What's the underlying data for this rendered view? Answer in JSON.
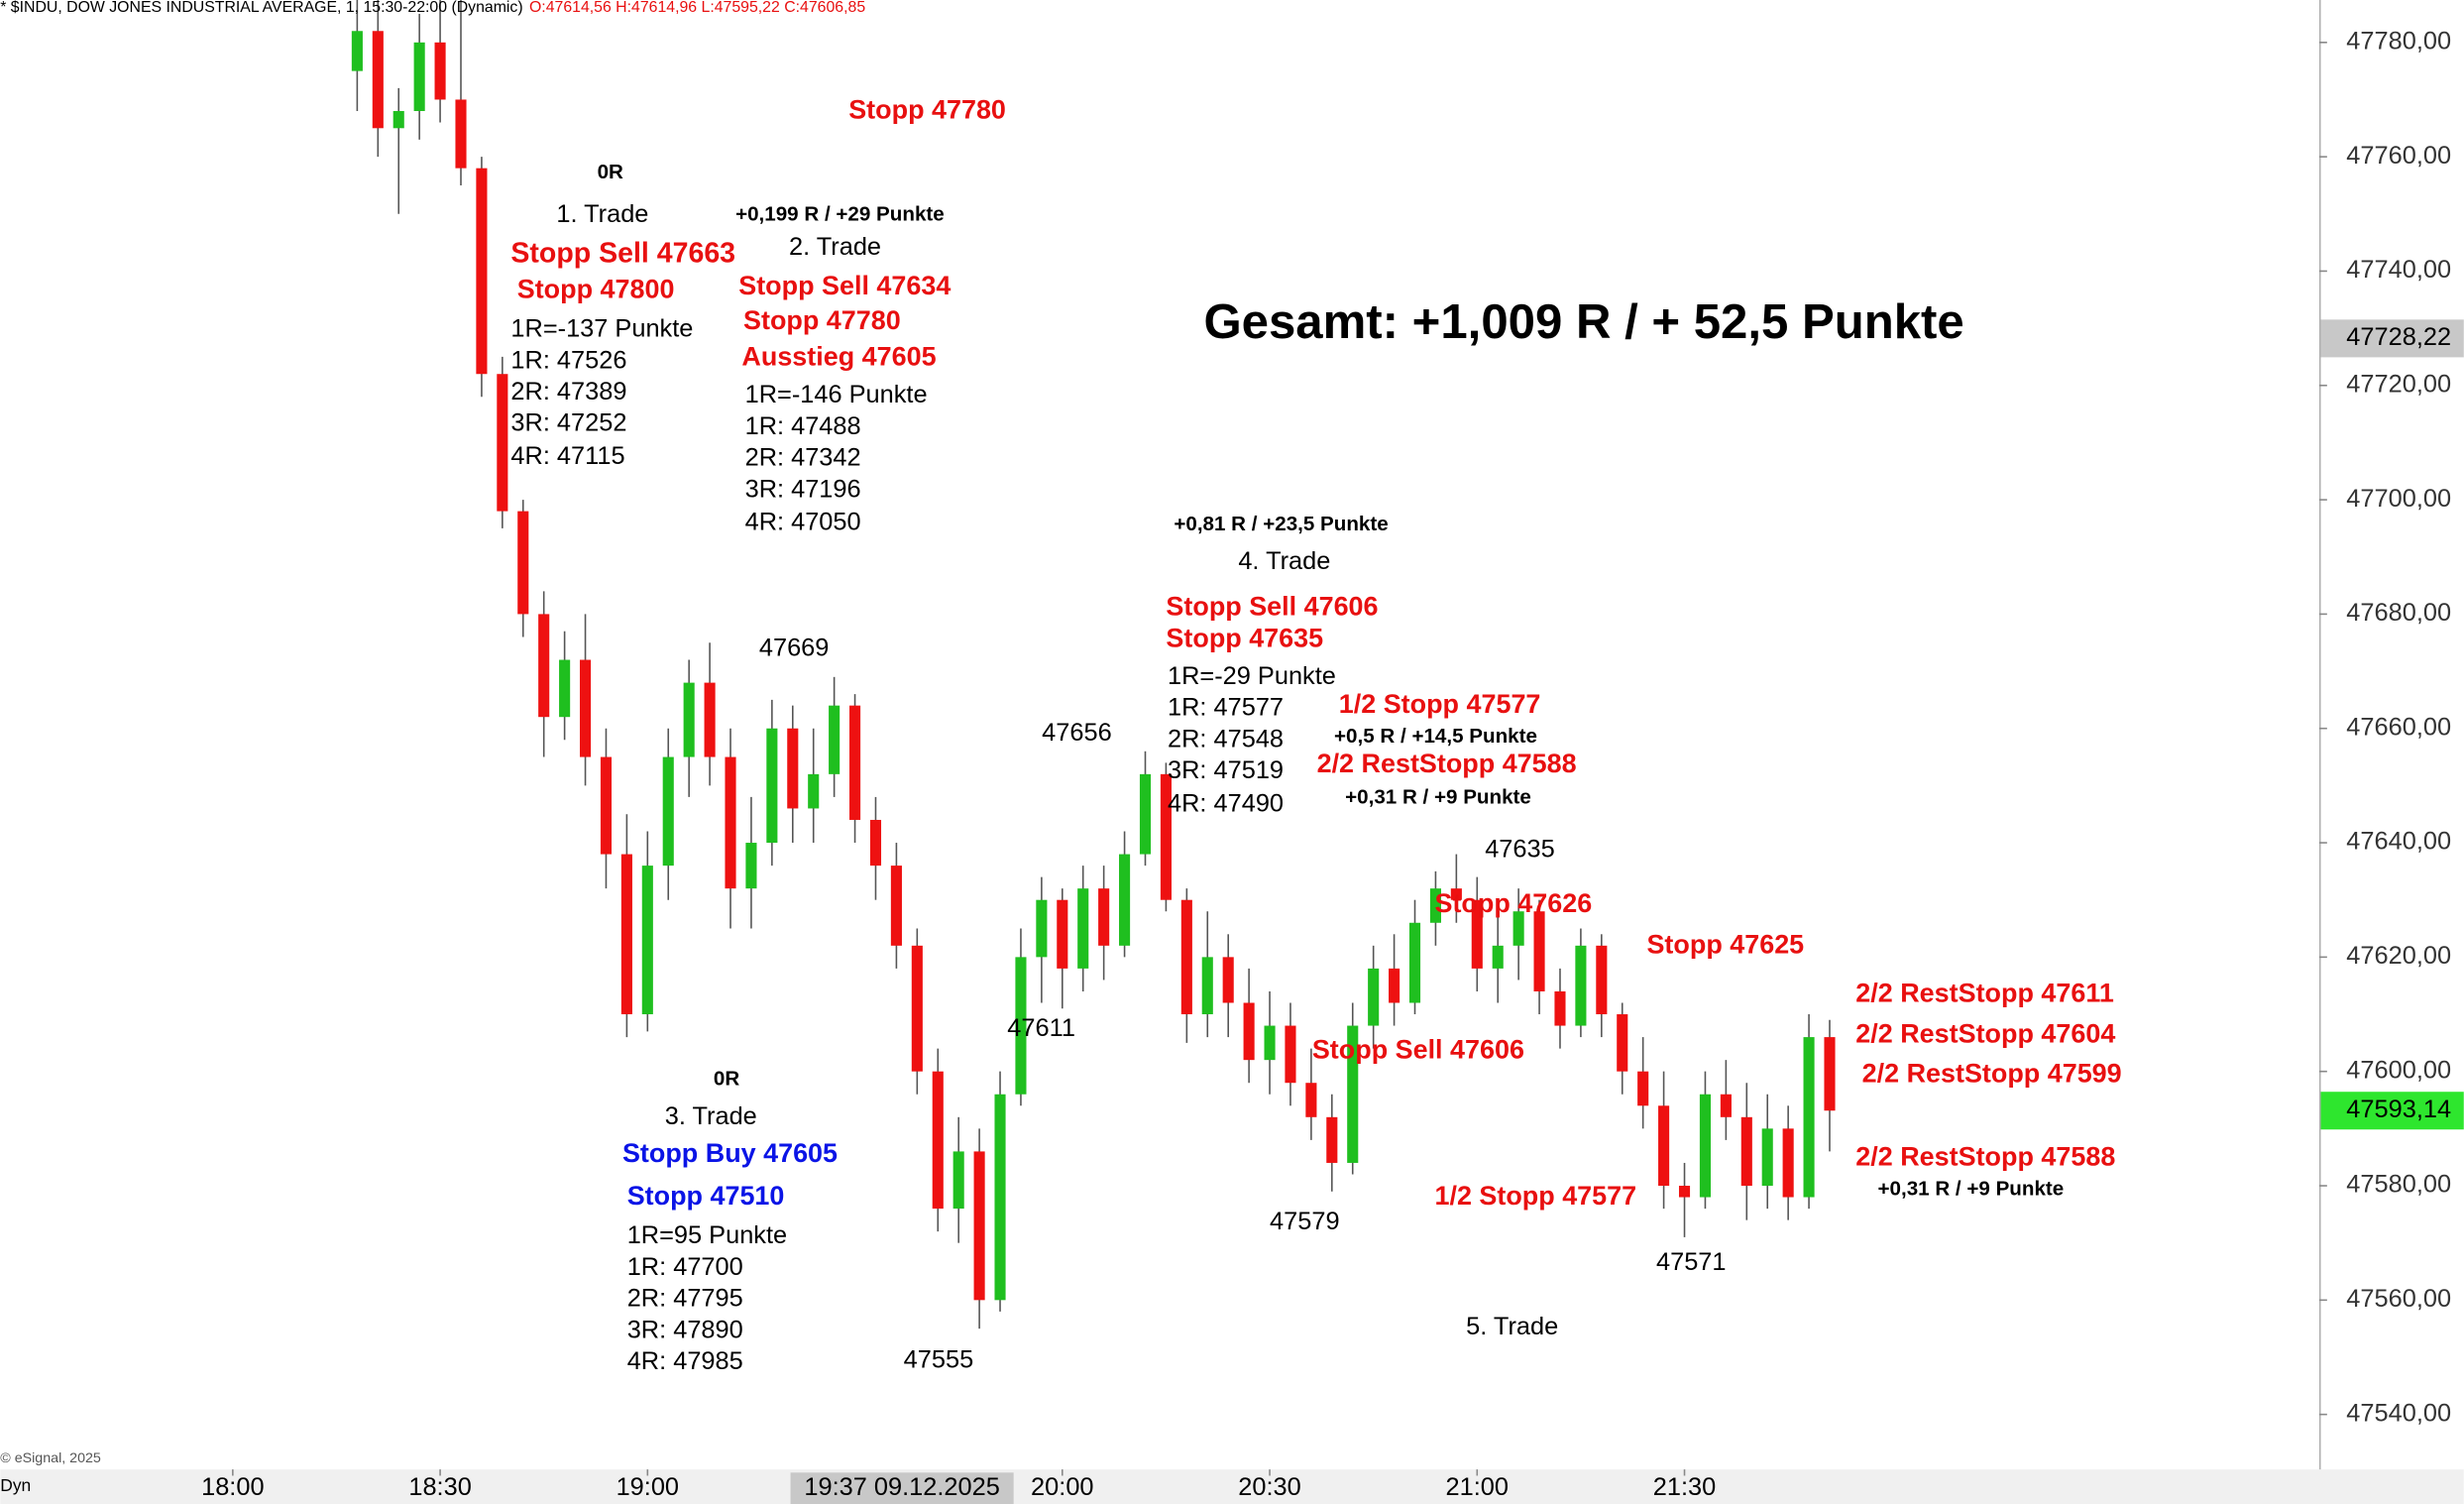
{
  "chart_data": {
    "type": "candlestick",
    "header": "* $INDU, DOW JONES INDUSTRIAL AVERAGE, 1, 15:30-22:00 (Dynamic)",
    "header_ohlc": "O:47614,56 H:47614,96 L:47595,22 C:47606,85",
    "copyright": "© eSignal, 2025",
    "corner_label": "Dyn",
    "crosshair_label": "19:37 09.12.2025",
    "up_color": "#1fbf1f",
    "down_color": "#ee1111",
    "x": [
      "18:18",
      "18:21",
      "18:24",
      "18:27",
      "18:30",
      "18:33",
      "18:36",
      "18:39",
      "18:42",
      "18:45",
      "18:48",
      "18:51",
      "18:54",
      "18:57",
      "19:00",
      "19:03",
      "19:06",
      "19:09",
      "19:12",
      "19:15",
      "19:18",
      "19:21",
      "19:24",
      "19:27",
      "19:30",
      "19:33",
      "19:36",
      "19:39",
      "19:42",
      "19:45",
      "19:48",
      "19:51",
      "19:54",
      "19:57",
      "20:00",
      "20:03",
      "20:06",
      "20:09",
      "20:12",
      "20:15",
      "20:18",
      "20:21",
      "20:24",
      "20:27",
      "20:30",
      "20:33",
      "20:36",
      "20:39",
      "20:42",
      "20:45",
      "20:48",
      "20:51",
      "20:54",
      "20:57",
      "21:00",
      "21:03",
      "21:06",
      "21:09",
      "21:12",
      "21:15",
      "21:18",
      "21:21",
      "21:24",
      "21:27",
      "21:30",
      "21:33",
      "21:36",
      "21:39",
      "21:42",
      "21:45",
      "21:48",
      "21:51"
    ],
    "open": [
      47775,
      47782,
      47765,
      47768,
      47780,
      47770,
      47758,
      47722,
      47698,
      47680,
      47662,
      47672,
      47655,
      47638,
      47610,
      47636,
      47655,
      47668,
      47655,
      47632,
      47640,
      47660,
      47646,
      47652,
      47664,
      47644,
      47636,
      47622,
      47600,
      47576,
      47586,
      47560,
      47596,
      47620,
      47630,
      47618,
      47632,
      47622,
      47638,
      47652,
      47630,
      47610,
      47620,
      47612,
      47602,
      47608,
      47598,
      47592,
      47584,
      47608,
      47618,
      47612,
      47626,
      47632,
      47630,
      47618,
      47622,
      47628,
      47614,
      47608,
      47622,
      47610,
      47600,
      47594,
      47580,
      47578,
      47596,
      47592,
      47580,
      47590,
      47578,
      47606
    ],
    "high": [
      47790,
      47788,
      47772,
      47785,
      47790,
      47790,
      47760,
      47725,
      47700,
      47684,
      47677,
      47680,
      47660,
      47645,
      47642,
      47660,
      47672,
      47675,
      47660,
      47648,
      47665,
      47664,
      47660,
      47669,
      47666,
      47648,
      47640,
      47625,
      47604,
      47592,
      47590,
      47600,
      47625,
      47634,
      47632,
      47636,
      47636,
      47642,
      47656,
      47654,
      47632,
      47628,
      47624,
      47618,
      47614,
      47612,
      47604,
      47596,
      47612,
      47622,
      47624,
      47630,
      47635,
      47638,
      47634,
      47628,
      47632,
      47630,
      47618,
      47625,
      47624,
      47612,
      47606,
      47600,
      47584,
      47600,
      47602,
      47598,
      47596,
      47594,
      47610,
      47609
    ],
    "low": [
      47768,
      47760,
      47750,
      47763,
      47766,
      47755,
      47718,
      47695,
      47676,
      47655,
      47658,
      47650,
      47632,
      47606,
      47607,
      47630,
      47648,
      47650,
      47625,
      47625,
      47636,
      47640,
      47640,
      47648,
      47640,
      47630,
      47618,
      47596,
      47572,
      47570,
      47555,
      47558,
      47594,
      47612,
      47611,
      47614,
      47616,
      47620,
      47636,
      47628,
      47605,
      47606,
      47606,
      47598,
      47596,
      47594,
      47588,
      47579,
      47582,
      47604,
      47608,
      47610,
      47622,
      47626,
      47614,
      47612,
      47616,
      47610,
      47604,
      47606,
      47606,
      47596,
      47590,
      47576,
      47571,
      47576,
      47588,
      47574,
      47576,
      47574,
      47576,
      47586
    ],
    "close": [
      47782,
      47765,
      47768,
      47780,
      47770,
      47758,
      47722,
      47698,
      47680,
      47662,
      47672,
      47655,
      47638,
      47610,
      47636,
      47655,
      47668,
      47655,
      47632,
      47640,
      47660,
      47646,
      47652,
      47664,
      47644,
      47636,
      47622,
      47600,
      47576,
      47586,
      47560,
      47596,
      47620,
      47630,
      47618,
      47632,
      47622,
      47638,
      47652,
      47630,
      47610,
      47620,
      47612,
      47602,
      47608,
      47598,
      47592,
      47584,
      47608,
      47618,
      47612,
      47626,
      47632,
      47630,
      47618,
      47622,
      47628,
      47614,
      47608,
      47622,
      47610,
      47600,
      47594,
      47580,
      47578,
      47596,
      47592,
      47580,
      47590,
      47578,
      47606,
      47593.14
    ],
    "xticks": [
      "18:00",
      "18:30",
      "19:00",
      "20:00",
      "20:30",
      "21:00",
      "21:30"
    ],
    "ylim": [
      47540,
      47780
    ],
    "yticks": [
      {
        "value": 47540,
        "label": "47540,00"
      },
      {
        "value": 47560,
        "label": "47560,00"
      },
      {
        "value": 47580,
        "label": "47580,00"
      },
      {
        "value": 47600,
        "label": "47600,00"
      },
      {
        "value": 47620,
        "label": "47620,00"
      },
      {
        "value": 47640,
        "label": "47640,00"
      },
      {
        "value": 47660,
        "label": "47660,00"
      },
      {
        "value": 47680,
        "label": "47680,00"
      },
      {
        "value": 47700,
        "label": "47700,00"
      },
      {
        "value": 47720,
        "label": "47720,00"
      },
      {
        "value": 47740,
        "label": "47740,00"
      },
      {
        "value": 47760,
        "label": "47760,00"
      },
      {
        "value": 47780,
        "label": "47780,00"
      }
    ],
    "price_labels": [
      {
        "value": 47728.22,
        "label": "47728,22",
        "color": "#c8c8c8"
      },
      {
        "value": 47593.14,
        "label": "47593,14",
        "color": "#2ee62e"
      }
    ],
    "annotations": [
      {
        "text": "Stopp 47780",
        "color": "#e81010",
        "bold": true
      },
      {
        "text": "0R",
        "color": "#000000",
        "bold": true
      },
      {
        "text": "1. Trade",
        "color": "#000000",
        "bold": false
      },
      {
        "text": "+0,199 R / +29 Punkte",
        "color": "#000000",
        "bold": true
      },
      {
        "text": "Stopp Sell 47663",
        "color": "#e81010",
        "bold": true
      },
      {
        "text": "2. Trade",
        "color": "#000000",
        "bold": false
      },
      {
        "text": "Stopp 47800",
        "color": "#e81010",
        "bold": true
      },
      {
        "text": "Stopp Sell 47634",
        "color": "#e81010",
        "bold": true
      },
      {
        "text": "1R=-137 Punkte",
        "color": "#000000",
        "bold": false
      },
      {
        "text": "Stopp 47780",
        "color": "#e81010",
        "bold": true
      },
      {
        "text": "1R: 47526",
        "color": "#000000",
        "bold": false
      },
      {
        "text": "Ausstieg 47605",
        "color": "#e81010",
        "bold": true
      },
      {
        "text": "2R: 47389",
        "color": "#000000",
        "bold": false
      },
      {
        "text": "1R=-146 Punkte",
        "color": "#000000",
        "bold": false
      },
      {
        "text": "3R: 47252",
        "color": "#000000",
        "bold": false
      },
      {
        "text": "1R: 47488",
        "color": "#000000",
        "bold": false
      },
      {
        "text": "4R: 47115",
        "color": "#000000",
        "bold": false
      },
      {
        "text": "2R: 47342",
        "color": "#000000",
        "bold": false
      },
      {
        "text": "3R: 47196",
        "color": "#000000",
        "bold": false
      },
      {
        "text": "4R: 47050",
        "color": "#000000",
        "bold": false
      },
      {
        "text": "Gesamt: +1,009 R / + 52,5 Punkte",
        "color": "#000000",
        "bold": true
      },
      {
        "text": "+0,81 R / +23,5 Punkte",
        "color": "#000000",
        "bold": true
      },
      {
        "text": "4. Trade",
        "color": "#000000",
        "bold": false
      },
      {
        "text": "Stopp Sell 47606",
        "color": "#e81010",
        "bold": true
      },
      {
        "text": "Stopp 47635",
        "color": "#e81010",
        "bold": true
      },
      {
        "text": "1R=-29 Punkte",
        "color": "#000000",
        "bold": false
      },
      {
        "text": "1R: 47577",
        "color": "#000000",
        "bold": false
      },
      {
        "text": "2R: 47548",
        "color": "#000000",
        "bold": false
      },
      {
        "text": "3R: 47519",
        "color": "#000000",
        "bold": false
      },
      {
        "text": "4R: 47490",
        "color": "#000000",
        "bold": false
      },
      {
        "text": "1/2 Stopp 47577",
        "color": "#e81010",
        "bold": true
      },
      {
        "text": "+0,5 R / +14,5 Punkte",
        "color": "#000000",
        "bold": true
      },
      {
        "text": "2/2 RestStopp 47588",
        "color": "#e81010",
        "bold": true
      },
      {
        "text": "+0,31 R / +9 Punkte",
        "color": "#000000",
        "bold": true
      },
      {
        "text": "47669",
        "color": "#000000",
        "bold": false
      },
      {
        "text": "47656",
        "color": "#000000",
        "bold": false
      },
      {
        "text": "47635",
        "color": "#000000",
        "bold": false
      },
      {
        "text": "Stopp 47626",
        "color": "#e81010",
        "bold": true
      },
      {
        "text": "Stopp 47625",
        "color": "#e81010",
        "bold": true
      },
      {
        "text": "47611",
        "color": "#000000",
        "bold": false
      },
      {
        "text": "Stopp Sell 47606",
        "color": "#e81010",
        "bold": true
      },
      {
        "text": "0R",
        "color": "#000000",
        "bold": true
      },
      {
        "text": "3. Trade",
        "color": "#000000",
        "bold": false
      },
      {
        "text": "Stopp Buy 47605",
        "color": "#0a14e6",
        "bold": true
      },
      {
        "text": "Stopp 47510",
        "color": "#0a14e6",
        "bold": true
      },
      {
        "text": "1R=95 Punkte",
        "color": "#000000",
        "bold": false
      },
      {
        "text": "1R: 47700",
        "color": "#000000",
        "bold": false
      },
      {
        "text": "2R: 47795",
        "color": "#000000",
        "bold": false
      },
      {
        "text": "3R: 47890",
        "color": "#000000",
        "bold": false
      },
      {
        "text": "4R: 47985",
        "color": "#000000",
        "bold": false
      },
      {
        "text": "47555",
        "color": "#000000",
        "bold": false
      },
      {
        "text": "47579",
        "color": "#000000",
        "bold": false
      },
      {
        "text": "1/2 Stopp 47577",
        "color": "#e81010",
        "bold": true
      },
      {
        "text": "47571",
        "color": "#000000",
        "bold": false
      },
      {
        "text": "5. Trade",
        "color": "#000000",
        "bold": false
      },
      {
        "text": "2/2 RestStopp 47611",
        "color": "#e81010",
        "bold": true
      },
      {
        "text": "2/2 RestStopp 47604",
        "color": "#e81010",
        "bold": true
      },
      {
        "text": "2/2 RestStopp 47599",
        "color": "#e81010",
        "bold": true
      },
      {
        "text": "2/2 RestStopp 47588",
        "color": "#e81010",
        "bold": true
      },
      {
        "text": "+0,31 R / +9 Punkte",
        "color": "#000000",
        "bold": true
      }
    ]
  }
}
